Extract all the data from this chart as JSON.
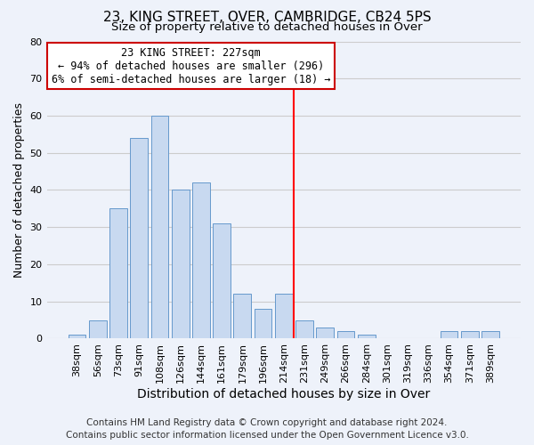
{
  "title": "23, KING STREET, OVER, CAMBRIDGE, CB24 5PS",
  "subtitle": "Size of property relative to detached houses in Over",
  "xlabel": "Distribution of detached houses by size in Over",
  "ylabel": "Number of detached properties",
  "bin_labels": [
    "38sqm",
    "56sqm",
    "73sqm",
    "91sqm",
    "108sqm",
    "126sqm",
    "144sqm",
    "161sqm",
    "179sqm",
    "196sqm",
    "214sqm",
    "231sqm",
    "249sqm",
    "266sqm",
    "284sqm",
    "301sqm",
    "319sqm",
    "336sqm",
    "354sqm",
    "371sqm",
    "389sqm"
  ],
  "bar_heights": [
    1,
    5,
    35,
    54,
    60,
    40,
    42,
    31,
    12,
    8,
    12,
    5,
    3,
    2,
    1,
    0,
    0,
    0,
    2,
    2,
    2
  ],
  "bar_color": "#c8d9f0",
  "bar_edge_color": "#6699cc",
  "vline_x_index": 11,
  "vline_color": "red",
  "annotation_title": "23 KING STREET: 227sqm",
  "annotation_line1": "← 94% of detached houses are smaller (296)",
  "annotation_line2": "6% of semi-detached houses are larger (18) →",
  "annotation_box_color": "white",
  "annotation_box_edge": "#cc0000",
  "ylim": [
    0,
    80
  ],
  "yticks": [
    0,
    10,
    20,
    30,
    40,
    50,
    60,
    70,
    80
  ],
  "grid_color": "#cccccc",
  "bg_color": "#eef2fa",
  "footer_line1": "Contains HM Land Registry data © Crown copyright and database right 2024.",
  "footer_line2": "Contains public sector information licensed under the Open Government Licence v3.0.",
  "title_fontsize": 11,
  "subtitle_fontsize": 9.5,
  "xlabel_fontsize": 10,
  "ylabel_fontsize": 9,
  "tick_fontsize": 8,
  "annotation_fontsize": 8.5,
  "footer_fontsize": 7.5
}
